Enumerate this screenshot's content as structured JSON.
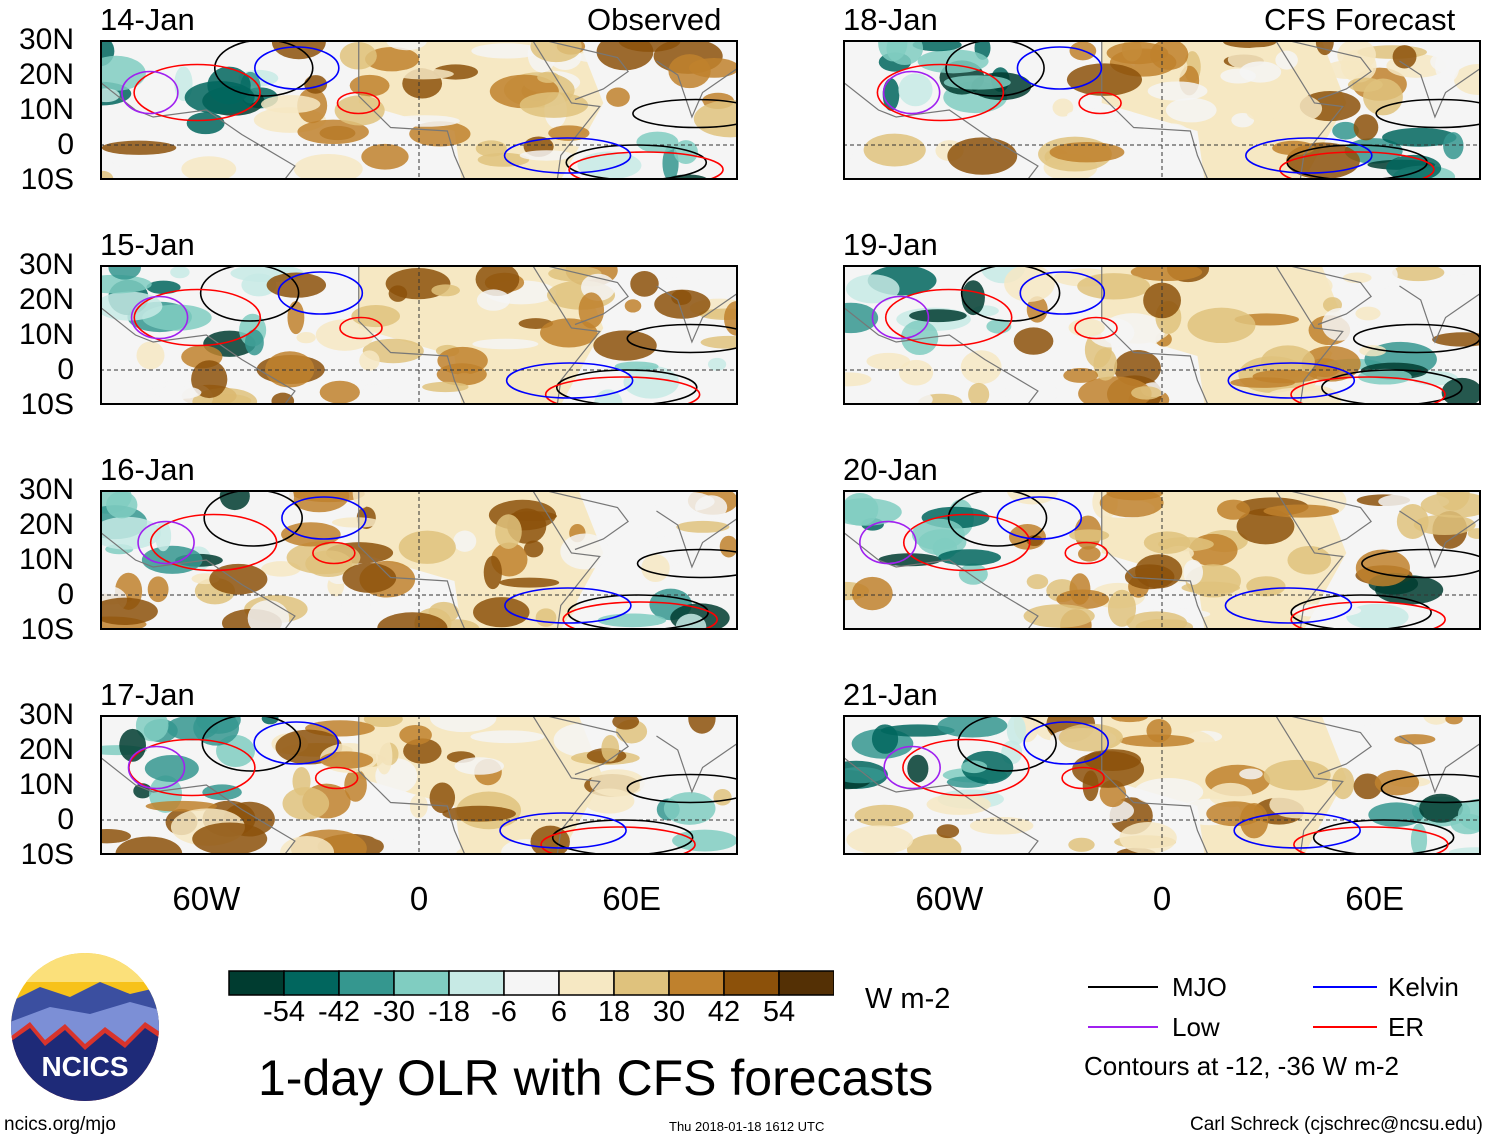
{
  "headers": {
    "observed": "Observed",
    "forecast": "CFS Forecast"
  },
  "panels": [
    {
      "date": "14-Jan",
      "type": "observed"
    },
    {
      "date": "15-Jan",
      "type": "observed"
    },
    {
      "date": "16-Jan",
      "type": "observed"
    },
    {
      "date": "17-Jan",
      "type": "observed"
    },
    {
      "date": "18-Jan",
      "type": "forecast"
    },
    {
      "date": "19-Jan",
      "type": "forecast"
    },
    {
      "date": "20-Jan",
      "type": "forecast"
    },
    {
      "date": "21-Jan",
      "type": "forecast"
    }
  ],
  "lat_labels": [
    "30N",
    "20N",
    "10N",
    "0",
    "10S"
  ],
  "lon_labels": [
    "60W",
    "0",
    "60E"
  ],
  "colorbar": {
    "colors": [
      "#003c30",
      "#01665e",
      "#35978f",
      "#80cdc1",
      "#c7eae5",
      "#f5f5f5",
      "#f6e8c3",
      "#dfc27d",
      "#bf812d",
      "#8c510a",
      "#543005"
    ],
    "labels": [
      "-54",
      "-42",
      "-30",
      "-18",
      "-6",
      "6",
      "18",
      "30",
      "42",
      "54"
    ],
    "units": "W m-2"
  },
  "title": "1-day OLR with CFS forecasts",
  "legend": {
    "items": [
      {
        "label": "MJO",
        "color": "#000000"
      },
      {
        "label": "Kelvin",
        "color": "#0000ff"
      },
      {
        "label": "Low",
        "color": "#a020f0"
      },
      {
        "label": "ER",
        "color": "#ff0000"
      }
    ],
    "note": "Contours at -12, -36 W m-2"
  },
  "logo": {
    "text": "NCICS"
  },
  "footer": {
    "left": "ncics.org/mjo",
    "center": "Thu 2018-01-18 1612 UTC",
    "right": "Carl Schreck (cjschrec@ncsu.edu)"
  }
}
